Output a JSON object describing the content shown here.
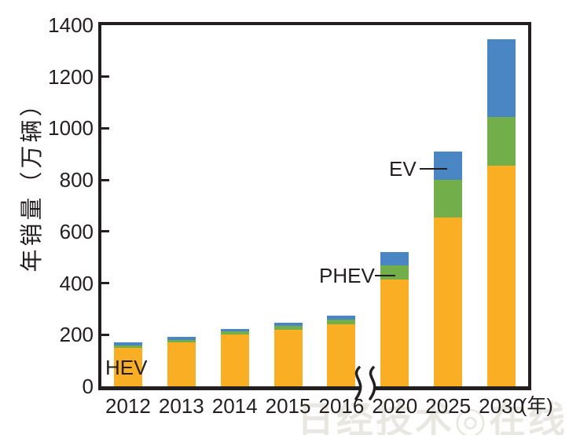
{
  "chart_data": {
    "type": "bar",
    "stacked": true,
    "title": "",
    "categories": [
      "2012",
      "2013",
      "2014",
      "2015",
      "2016",
      "2020",
      "2025",
      "2030"
    ],
    "series": [
      {
        "name": "HEV",
        "color": "#F9AE23",
        "values": [
          150,
          170,
          200,
          220,
          240,
          415,
          655,
          855
        ]
      },
      {
        "name": "PHEV",
        "color": "#72AF4B",
        "values": [
          8,
          11,
          12,
          15,
          18,
          55,
          145,
          190
        ]
      },
      {
        "name": "EV",
        "color": "#4A86C4",
        "values": [
          14,
          12,
          11,
          12,
          17,
          50,
          110,
          300
        ]
      }
    ],
    "totals": [
      172,
      193,
      223,
      247,
      275,
      520,
      910,
      1345
    ],
    "ylabel": "年销量（万辆）",
    "xunit": "(年)",
    "ylim": [
      0,
      1400
    ],
    "yticks": [
      0,
      200,
      400,
      600,
      800,
      1000,
      1200,
      1400
    ],
    "grid": false,
    "legend": "inline-annotations",
    "axis_break_between": [
      "2016",
      "2020"
    ],
    "annotations": {
      "hev": "HEV",
      "phev": "PHEV",
      "ev": "EV"
    },
    "axis_color": "#231f20"
  },
  "watermark": "日经技术◎在线!"
}
